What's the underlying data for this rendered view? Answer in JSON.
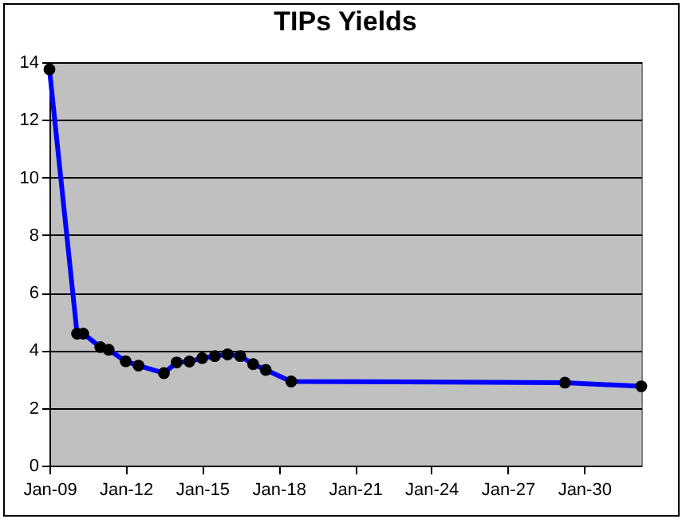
{
  "chart_data": {
    "type": "line",
    "title": "TIPs Yields",
    "x": [
      "2009-01",
      "2010-02",
      "2010-05",
      "2011-01",
      "2011-05",
      "2012-01",
      "2012-07",
      "2013-07",
      "2014-01",
      "2014-07",
      "2015-01",
      "2015-07",
      "2016-01",
      "2016-07",
      "2017-01",
      "2017-07",
      "2018-07",
      "2029-04",
      "2032-04"
    ],
    "series": [
      {
        "color": "#0000ff",
        "values": [
          13.75,
          4.58,
          4.58,
          4.11,
          4.02,
          3.62,
          3.47,
          3.21,
          3.58,
          3.61,
          3.73,
          3.8,
          3.86,
          3.8,
          3.52,
          3.32,
          2.92,
          2.88,
          2.75
        ]
      }
    ],
    "xlim": [
      "2009-01",
      "2032-04"
    ],
    "xticks": [
      {
        "value": "2009-01",
        "label": "Jan-09"
      },
      {
        "value": "2012-01",
        "label": "Jan-12"
      },
      {
        "value": "2015-01",
        "label": "Jan-15"
      },
      {
        "value": "2018-01",
        "label": "Jan-18"
      },
      {
        "value": "2021-01",
        "label": "Jan-21"
      },
      {
        "value": "2024-01",
        "label": "Jan-24"
      },
      {
        "value": "2027-01",
        "label": "Jan-27"
      },
      {
        "value": "2030-01",
        "label": "Jan-30"
      }
    ],
    "ylim": [
      0,
      14
    ],
    "yticks": [
      0,
      2,
      4,
      6,
      8,
      10,
      12,
      14
    ],
    "grid": "y",
    "marker": "circle",
    "line_style": "solid"
  }
}
